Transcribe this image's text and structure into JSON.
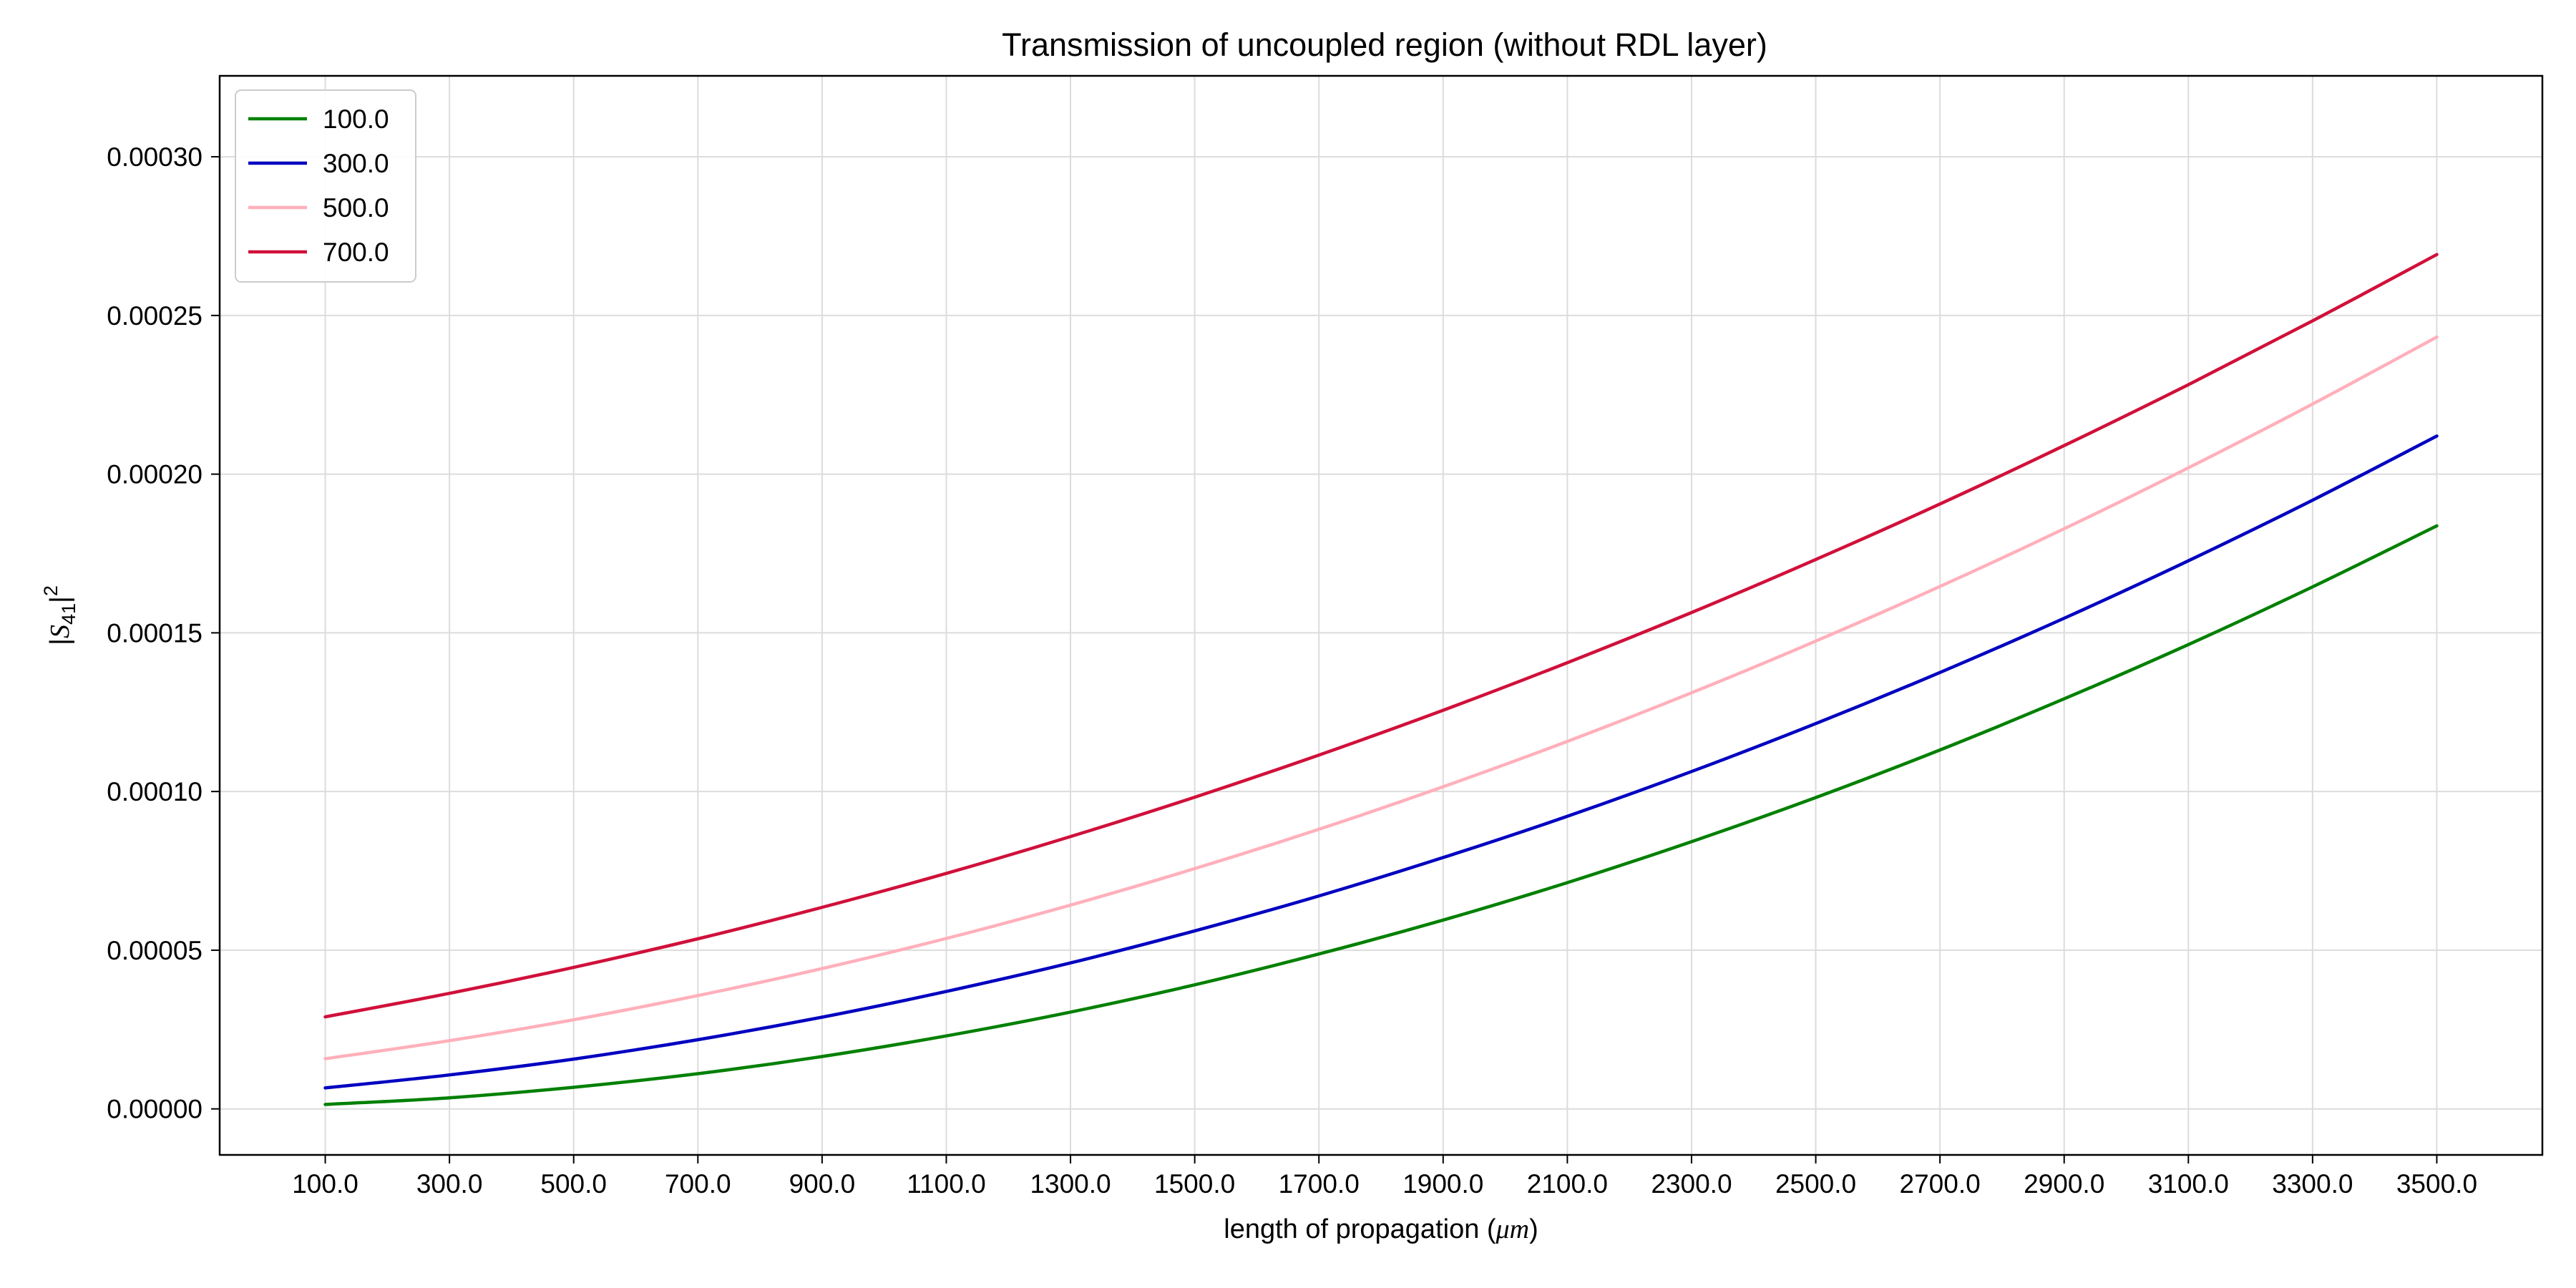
{
  "chart_data": {
    "type": "line",
    "title": "Transmission of uncoupled region (without RDL layer)",
    "xlabel": "length of propagation (",
    "xlabel_math": "μm",
    "xlabel_close": ")",
    "ylabel": "|S41|²",
    "ylabel_parts": {
      "open": "|",
      "symbol": "S",
      "subscript": "41",
      "close": "|",
      "superscript": "2"
    },
    "xlim": [
      -70,
      3670
    ],
    "ylim": [
      -1.45e-05,
      0.0003255
    ],
    "grid": true,
    "legend_position": "top-left",
    "x_ticks": [
      100,
      300,
      500,
      700,
      900,
      1100,
      1300,
      1500,
      1700,
      1900,
      2100,
      2300,
      2500,
      2700,
      2900,
      3100,
      3300,
      3500
    ],
    "x_tick_labels": [
      "100.0",
      "300.0",
      "500.0",
      "700.0",
      "900.0",
      "1100.0",
      "1300.0",
      "1500.0",
      "1700.0",
      "1900.0",
      "2100.0",
      "2300.0",
      "2500.0",
      "2700.0",
      "2900.0",
      "3100.0",
      "3300.0",
      "3500.0"
    ],
    "y_ticks": [
      0,
      5e-05,
      0.0001,
      0.00015,
      0.0002,
      0.00025,
      0.0003
    ],
    "y_tick_labels": [
      "0.00000",
      "0.00005",
      "0.00010",
      "0.00015",
      "0.00020",
      "0.00025",
      "0.00030"
    ],
    "x": [
      100,
      300,
      500,
      700,
      900,
      1100,
      1300,
      1500,
      1700,
      1900,
      2100,
      2300,
      2500,
      2700,
      2900,
      3100,
      3300,
      3500
    ],
    "series": [
      {
        "name": "100.0",
        "color": "#008000",
        "values": [
          1.4e-06,
          3.5e-06,
          6.8e-06,
          1.11e-05,
          1.65e-05,
          2.3e-05,
          3.05e-05,
          3.91e-05,
          4.88e-05,
          5.95e-05,
          7.13e-05,
          8.42e-05,
          9.81e-05,
          0.0001131,
          0.0001292,
          0.0001463,
          0.0001645,
          0.0001837
        ]
      },
      {
        "name": "300.0",
        "color": "#0000c0",
        "values": [
          6.6e-06,
          1.07e-05,
          1.57e-05,
          2.18e-05,
          2.89e-05,
          3.7e-05,
          4.6e-05,
          5.61e-05,
          6.71e-05,
          7.92e-05,
          9.22e-05,
          0.0001063,
          0.0001214,
          0.0001375,
          0.0001546,
          0.0001727,
          0.0001918,
          0.000212
        ]
      },
      {
        "name": "500.0",
        "color": "#ffb0bb",
        "values": [
          1.58e-05,
          2.15e-05,
          2.81e-05,
          3.57e-05,
          4.42e-05,
          5.37e-05,
          6.42e-05,
          7.57e-05,
          8.81e-05,
          0.0001015,
          0.0001158,
          0.0001311,
          0.0001474,
          0.0001646,
          0.0001828,
          0.000202,
          0.0002221,
          0.0002432
        ]
      },
      {
        "name": "700.0",
        "color": "#d0103a",
        "values": [
          2.9e-05,
          3.64e-05,
          4.46e-05,
          5.36e-05,
          6.35e-05,
          7.42e-05,
          8.58e-05,
          9.82e-05,
          0.0001115,
          0.0001256,
          0.0001406,
          0.0001564,
          0.0001731,
          0.0001906,
          0.000209,
          0.0002282,
          0.0002483,
          0.0002692
        ]
      }
    ]
  }
}
